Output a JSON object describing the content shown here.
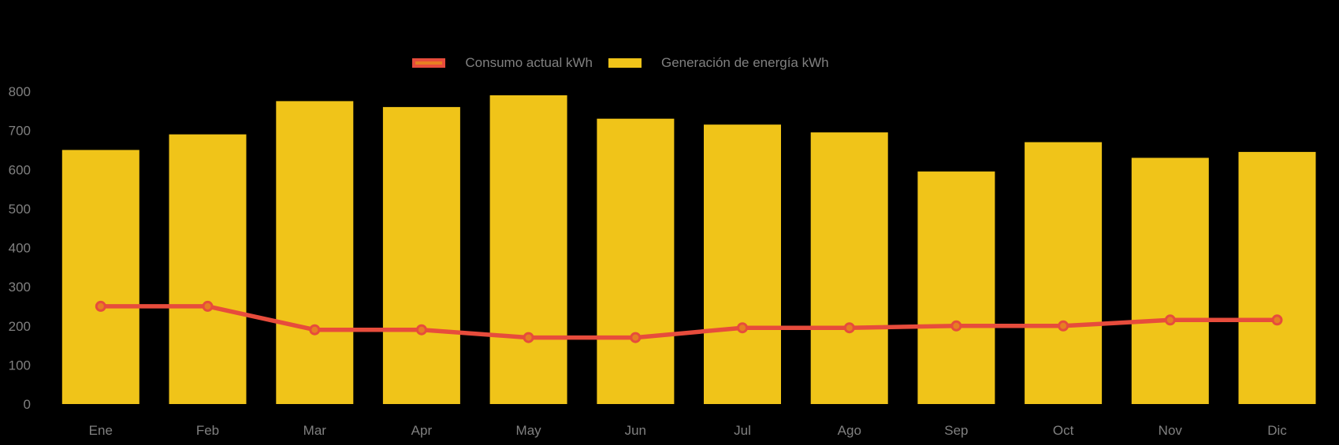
{
  "legend": {
    "position": "top"
  },
  "chart_data": {
    "type": "bar",
    "combo": "bar+line",
    "title": "",
    "xlabel": "",
    "ylabel": "",
    "categories": [
      "Ene",
      "Feb",
      "Mar",
      "Apr",
      "May",
      "Jun",
      "Jul",
      "Ago",
      "Sep",
      "Oct",
      "Nov",
      "Dic"
    ],
    "series": [
      {
        "name": "Consumo actual kWh",
        "type": "line",
        "values": [
          250,
          250,
          190,
          190,
          170,
          170,
          195,
          195,
          200,
          200,
          215,
          215
        ],
        "line_color": "#E74C3C",
        "point_fill": "#E67E22"
      },
      {
        "name": "Generación de energía kWh",
        "type": "bar",
        "values": [
          650,
          690,
          775,
          760,
          790,
          730,
          715,
          695,
          595,
          670,
          630,
          645
        ],
        "fill": "#F0C419"
      }
    ],
    "ylim": [
      0,
      800
    ],
    "yticks": [
      0,
      100,
      200,
      300,
      400,
      500,
      600,
      700,
      800
    ],
    "grid": false,
    "legend_position": "top",
    "axis_text_color": "#808080",
    "background": "#000000"
  }
}
